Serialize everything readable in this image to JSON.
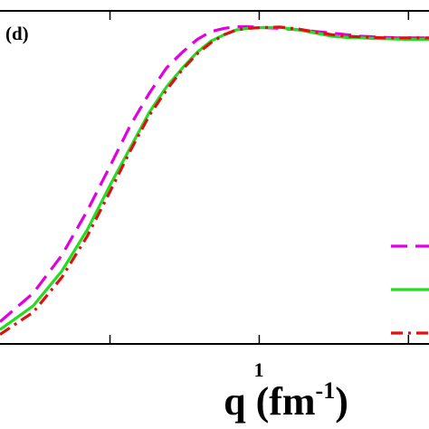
{
  "chart_data": {
    "type": "line",
    "panel_label": "(d)",
    "xlabel_main": "q (fm",
    "xlabel_exp": "-1",
    "xlabel_close": ")",
    "xscale": "log",
    "xlim": [
      0.3,
      2.2
    ],
    "ylim": [
      0,
      1.05
    ],
    "x_tick_labels": [
      "1"
    ],
    "grid": false,
    "legend_position": "bottom-right",
    "series": [
      {
        "color": "#e000e0",
        "dash": "dashed",
        "x": [
          0.3,
          0.35,
          0.4,
          0.45,
          0.5,
          0.55,
          0.6,
          0.65,
          0.7,
          0.75,
          0.8,
          0.85,
          0.9,
          0.95,
          1.0,
          1.1,
          1.2,
          1.3,
          1.4,
          1.5,
          1.6,
          1.7,
          1.8,
          1.9,
          2.0,
          2.1,
          2.2
        ],
        "y": [
          0.07,
          0.16,
          0.28,
          0.42,
          0.56,
          0.69,
          0.79,
          0.87,
          0.92,
          0.96,
          0.985,
          0.995,
          1.0,
          1.0,
          0.998,
          0.995,
          0.99,
          0.985,
          0.98,
          0.975,
          0.97,
          0.968,
          0.966,
          0.965,
          0.965,
          0.965,
          0.965
        ]
      },
      {
        "color": "#22dd22",
        "dash": "solid",
        "x": [
          0.3,
          0.35,
          0.4,
          0.45,
          0.5,
          0.55,
          0.6,
          0.65,
          0.7,
          0.75,
          0.8,
          0.85,
          0.9,
          0.95,
          1.0,
          1.1,
          1.2,
          1.3,
          1.4,
          1.5,
          1.6,
          1.7,
          1.8,
          1.9,
          2.0,
          2.1,
          2.2
        ],
        "y": [
          0.045,
          0.12,
          0.23,
          0.36,
          0.5,
          0.62,
          0.73,
          0.81,
          0.87,
          0.92,
          0.955,
          0.975,
          0.99,
          0.995,
          0.997,
          0.998,
          0.99,
          0.98,
          0.97,
          0.966,
          0.965,
          0.963,
          0.962,
          0.961,
          0.96,
          0.96,
          0.96
        ]
      },
      {
        "color": "#dd1111",
        "dash": "dashdot",
        "x": [
          0.3,
          0.35,
          0.4,
          0.45,
          0.5,
          0.55,
          0.6,
          0.65,
          0.7,
          0.75,
          0.8,
          0.85,
          0.9,
          0.95,
          1.0,
          1.1,
          1.2,
          1.3,
          1.4,
          1.5,
          1.6,
          1.7,
          1.8,
          1.9,
          2.0,
          2.1,
          2.2
        ],
        "y": [
          0.03,
          0.1,
          0.21,
          0.34,
          0.48,
          0.61,
          0.72,
          0.8,
          0.865,
          0.915,
          0.95,
          0.975,
          0.99,
          0.995,
          0.997,
          0.999,
          0.993,
          0.983,
          0.975,
          0.97,
          0.968,
          0.966,
          0.965,
          0.965,
          0.965,
          0.965,
          0.965
        ]
      }
    ]
  }
}
